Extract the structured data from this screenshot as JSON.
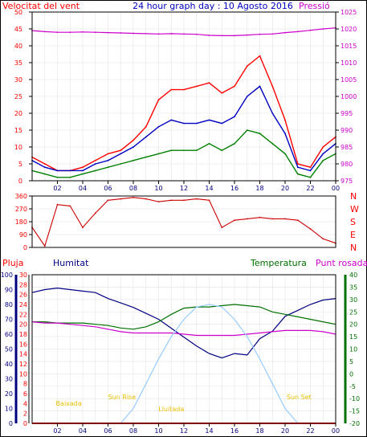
{
  "title": "24 hour graph day : 10 Agosto 2016",
  "colors": {
    "frame": "#000000",
    "wind": "#ff0000",
    "wind_avg": "#0000c0",
    "wind_low": "#008000",
    "pressure": "#cc00cc",
    "direction": "#cc0000",
    "rain": "#ff0000",
    "humidity": "#000080",
    "temperature": "#007000",
    "dewpoint": "#cc00cc",
    "sun_curve": "#99ccff",
    "events": "#e8c000"
  },
  "x_axis": {
    "ticks": [
      "02",
      "04",
      "06",
      "08",
      "10",
      "12",
      "14",
      "16",
      "18",
      "20",
      "22",
      "00"
    ]
  },
  "chart_data": [
    {
      "type": "line",
      "title": "Velocitat del vent / Pressió",
      "ylabel_left": "Velocitat del vent",
      "ylabel_right": "Pressió",
      "ylim_left": [
        0,
        50
      ],
      "ylim_right": [
        975,
        1025
      ],
      "yticks_left": [
        0,
        5,
        10,
        15,
        20,
        25,
        30,
        35,
        40,
        45,
        50
      ],
      "yticks_right": [
        975,
        980,
        985,
        990,
        995,
        1000,
        1005,
        1010,
        1015,
        1020,
        1025
      ],
      "x": [
        0,
        1,
        2,
        3,
        4,
        5,
        6,
        7,
        8,
        9,
        10,
        11,
        12,
        13,
        14,
        15,
        16,
        17,
        18,
        19,
        20,
        21,
        22,
        23,
        24
      ],
      "series": [
        {
          "color": "red",
          "values": [
            7,
            5,
            3,
            3,
            4,
            6,
            8,
            9,
            12,
            16,
            24,
            27,
            27,
            28,
            29,
            26,
            28,
            34,
            37,
            28,
            18,
            5,
            4,
            10,
            13
          ]
        },
        {
          "color": "blue",
          "values": [
            6,
            4,
            3,
            3,
            3,
            5,
            6,
            8,
            10,
            13,
            16,
            18,
            17,
            17,
            18,
            17,
            19,
            25,
            28,
            20,
            14,
            4,
            3,
            8,
            11
          ]
        },
        {
          "color": "green",
          "values": [
            3,
            2,
            1,
            1,
            2,
            3,
            4,
            5,
            6,
            7,
            8,
            9,
            9,
            9,
            11,
            9,
            11,
            15,
            14,
            11,
            8,
            2,
            1,
            6,
            8
          ]
        },
        {
          "color": "magenta",
          "axis": "right",
          "values": [
            1019.5,
            1019.2,
            1019.0,
            1019.0,
            1019.1,
            1019.0,
            1018.9,
            1018.8,
            1018.7,
            1018.6,
            1018.5,
            1018.6,
            1018.5,
            1018.4,
            1018.1,
            1018.0,
            1018.0,
            1018.2,
            1018.4,
            1018.5,
            1018.9,
            1019.2,
            1019.6,
            1020.0,
            1020.3
          ]
        }
      ]
    },
    {
      "type": "line",
      "title": "Direcció",
      "ylim": [
        0,
        360
      ],
      "yticks": [
        0,
        90,
        180,
        270,
        360
      ],
      "compass_labels": [
        "N",
        "W",
        "S",
        "E",
        "N"
      ],
      "x": [
        0,
        1,
        2,
        3,
        4,
        5,
        6,
        7,
        8,
        9,
        10,
        11,
        12,
        13,
        14,
        15,
        16,
        17,
        18,
        19,
        20,
        21,
        22,
        23,
        24
      ],
      "series": [
        {
          "color": "darkred",
          "values": [
            140,
            10,
            300,
            290,
            140,
            240,
            330,
            340,
            350,
            340,
            320,
            330,
            330,
            340,
            330,
            140,
            190,
            200,
            210,
            200,
            200,
            190,
            130,
            60,
            30
          ]
        }
      ]
    },
    {
      "type": "line",
      "title": "Pluja / Humitat / Temperatura / Punt rosada",
      "labels": [
        "Pluja",
        "Humitat",
        "Temperatura",
        "Punt rosada"
      ],
      "ylim_humidity": [
        0,
        100
      ],
      "yticks_humidity": [
        0,
        10,
        20,
        30,
        40,
        50,
        60,
        70,
        80,
        90,
        100
      ],
      "ylim_rain": [
        0,
        30
      ],
      "yticks_rain": [
        0,
        2,
        4,
        6,
        8,
        10,
        12,
        14,
        16,
        18,
        20,
        22,
        24,
        26,
        28,
        30
      ],
      "ylim_temp": [
        -20,
        40
      ],
      "yticks_temp": [
        -20,
        -15,
        -10,
        -5,
        0,
        5,
        10,
        15,
        20,
        25,
        30,
        35,
        40
      ],
      "x": [
        0,
        1,
        2,
        3,
        4,
        5,
        6,
        7,
        8,
        9,
        10,
        11,
        12,
        13,
        14,
        15,
        16,
        17,
        18,
        19,
        20,
        21,
        22,
        23,
        24
      ],
      "series": [
        {
          "color": "navy",
          "axis": "humidity",
          "values": [
            88,
            90,
            91,
            90,
            89,
            88,
            84,
            81,
            78,
            74,
            70,
            64,
            58,
            52,
            47,
            44,
            47,
            46,
            57,
            62,
            72,
            76,
            80,
            83,
            84
          ]
        },
        {
          "color": "green",
          "axis": "temp",
          "values": [
            21,
            21,
            20.5,
            20.5,
            20.5,
            20,
            19.5,
            18.5,
            18,
            19,
            21,
            24,
            26.5,
            27,
            27,
            27.5,
            28,
            27.5,
            27,
            25,
            24,
            23,
            22,
            21,
            20
          ]
        },
        {
          "color": "magenta",
          "axis": "temp",
          "values": [
            21,
            20.5,
            20.5,
            20,
            19.5,
            19,
            18,
            17,
            16.5,
            16.5,
            16.5,
            16.5,
            16,
            15.5,
            15.5,
            15.5,
            15.5,
            16,
            16.5,
            17,
            17.5,
            17.5,
            17.5,
            17,
            16
          ]
        },
        {
          "color": "lightblue",
          "axis": "temp",
          "values": [
            null,
            null,
            null,
            null,
            null,
            null,
            null,
            -20,
            -14,
            -4,
            6,
            15,
            22,
            27,
            28,
            27,
            22,
            15,
            6,
            -4,
            -14,
            -20,
            null,
            null,
            null
          ]
        },
        {
          "color": "red",
          "axis": "rain",
          "values": [
            0,
            0,
            0,
            0,
            0,
            0,
            0,
            0,
            0,
            0,
            0,
            0,
            0,
            0,
            0,
            0,
            0,
            0,
            0,
            0,
            0,
            0,
            0,
            0,
            0
          ]
        }
      ],
      "events": [
        {
          "label": "Baixada",
          "x": 2.9
        },
        {
          "label": "Sun Rise",
          "x": 7.1
        },
        {
          "label": "Lluitada",
          "x": 11.0
        },
        {
          "label": "Sun Set",
          "x": 21.1
        }
      ]
    }
  ]
}
